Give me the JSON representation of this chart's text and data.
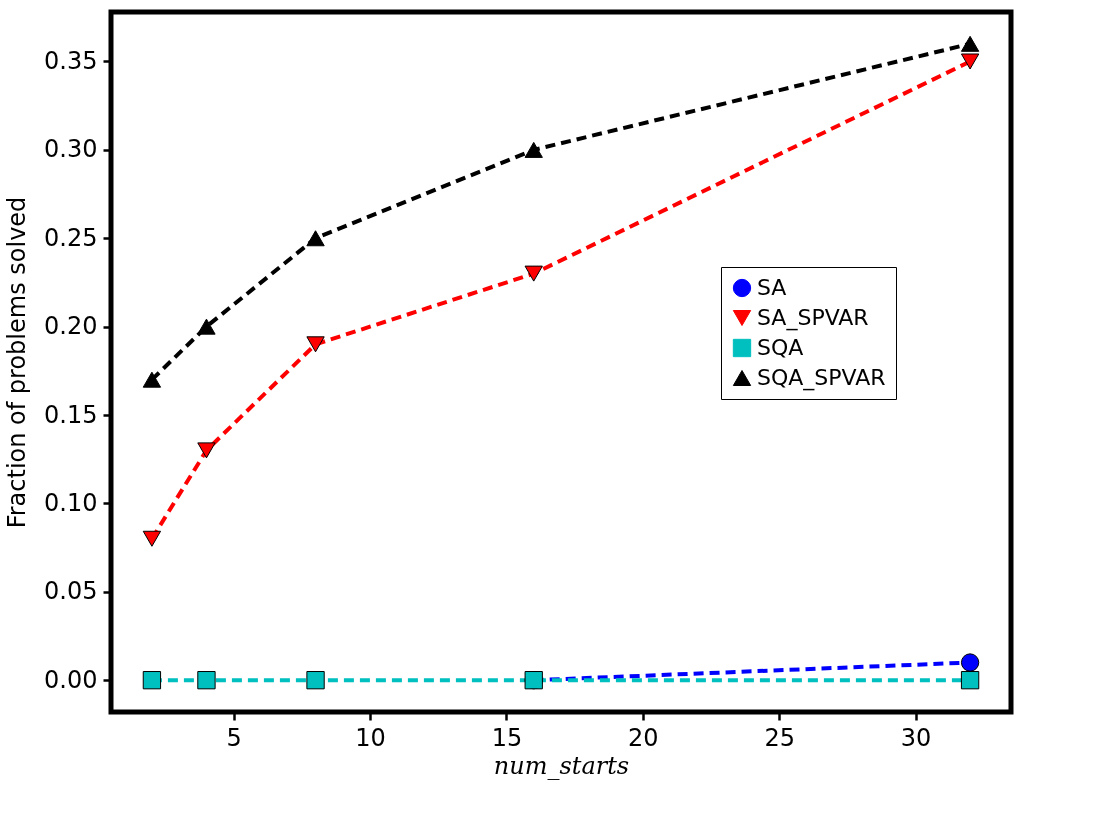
{
  "chart_data": {
    "type": "line",
    "xlabel": "num_starts",
    "ylabel": "Fraction of problems solved",
    "x": [
      2,
      4,
      8,
      16,
      32
    ],
    "series": [
      {
        "name": "SA",
        "color": "#0000ff",
        "marker": "circle",
        "values": [
          null,
          null,
          null,
          0,
          0.01
        ]
      },
      {
        "name": "SA_SPVAR",
        "color": "#ff0000",
        "marker": "triangle-down",
        "values": [
          0.08,
          0.13,
          0.19,
          0.23,
          0.35
        ]
      },
      {
        "name": "SQA",
        "color": "#00bfbf",
        "marker": "square",
        "values": [
          0,
          0,
          0,
          0,
          0
        ]
      },
      {
        "name": "SQA_SPVAR",
        "color": "#000000",
        "marker": "triangle",
        "values": [
          0.17,
          0.2,
          0.25,
          0.3,
          0.36
        ]
      }
    ],
    "xlim": [
      0.5,
      33.5
    ],
    "xticks": [
      5,
      10,
      15,
      20,
      25,
      30
    ],
    "ylim": [
      -0.018,
      0.378
    ],
    "yticks": [
      {
        "value": 0,
        "label": "0.00"
      },
      0.05,
      {
        "value": 0.1,
        "label": "0.10"
      },
      0.15,
      {
        "value": 0.2,
        "label": "0.20"
      },
      0.25,
      {
        "value": 0.3,
        "label": "0.30"
      },
      0.35
    ],
    "grid": false,
    "legend": "right",
    "line_style": "dashed"
  }
}
